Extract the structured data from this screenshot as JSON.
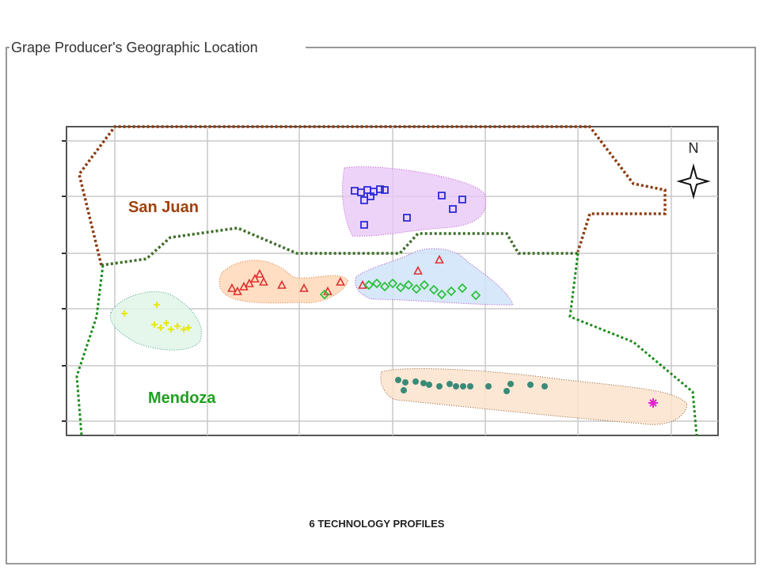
{
  "panel": {
    "title": "Grape Producer's Geographic Location"
  },
  "map": {
    "regions": [
      "San Juan",
      "Mendoza"
    ],
    "north": "N",
    "caption": "6 TECHNOLOGY PROFILES"
  }
}
